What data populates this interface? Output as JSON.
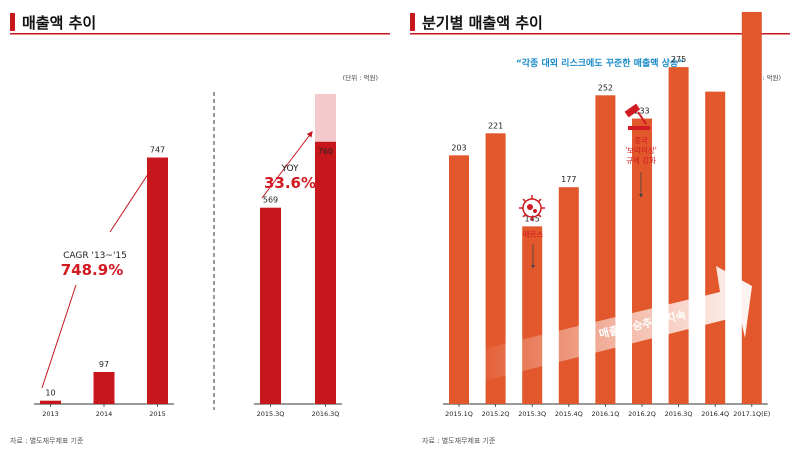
{
  "left_panel": {
    "title": "매출액 추이",
    "unit": "(단위 : 억원)",
    "source": "자료 : 별도재무제표 기준",
    "cagr_label": "CAGR '13~'15",
    "cagr_value": "748.9%",
    "yoy_label": "YOY",
    "yoy_value": "33.6%"
  },
  "right_panel": {
    "title": "분기별 매출액 추이",
    "subtitle": "“각종 대외 리스크에도 꾸준한 매출액 상승”",
    "unit": "(단위 : 억원)",
    "source": "자료 : 별도재무제표 기준",
    "annotation_mers": "메르스",
    "annotation_china": [
      "중국",
      "'보따리상'",
      "규제 강화"
    ],
    "trend_label": "매출 상승추세 지속"
  },
  "colors": {
    "annual_bar": "#c8161d",
    "annual_bar_light": "#f3c9cb",
    "quarter_bar": "#e2572b",
    "accent_red": "#d11a22",
    "title_rule": "#c8161d",
    "subtitle_blue": "#1a8bc9"
  },
  "chart_data": [
    {
      "type": "bar",
      "categories": [
        "2013",
        "2014",
        "2015"
      ],
      "values": [
        10,
        97,
        747
      ],
      "ylim": [
        0,
        800
      ]
    },
    {
      "type": "bar",
      "categories": [
        "2015.3Q",
        "2016.3Q"
      ],
      "values": [
        569,
        760
      ],
      "ylim": [
        0,
        800
      ]
    },
    {
      "type": "bar",
      "categories": [
        "2015.1Q",
        "2015.2Q",
        "2015.3Q",
        "2015.4Q",
        "2016.1Q",
        "2016.2Q",
        "2016.3Q",
        "2016.4Q",
        "2017.1Q(E)"
      ],
      "values": [
        203,
        221,
        145,
        177,
        252,
        233,
        275,
        255,
        320
      ],
      "labels": [
        "203",
        "221",
        "145",
        "177",
        "252",
        "233",
        "275",
        "",
        ""
      ],
      "ylim": [
        0,
        400
      ]
    }
  ]
}
